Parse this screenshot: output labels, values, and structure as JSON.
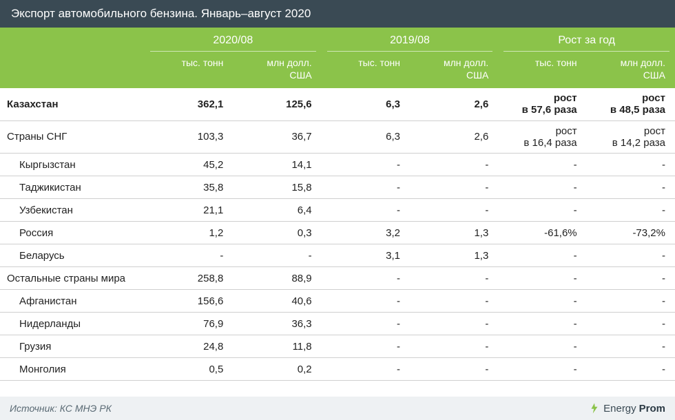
{
  "title": "Экспорт автомобильного бензина. Январь–август 2020",
  "header": {
    "groups": [
      "2020/08",
      "2019/08",
      "Рост за год"
    ],
    "sub_tons": "тыс. тонн",
    "sub_usd": "млн долл.\nСША"
  },
  "rows": [
    {
      "label": "Казахстан",
      "bold": true,
      "indent": false,
      "tall": true,
      "c": [
        "362,1",
        "125,6",
        "6,3",
        "2,6",
        "рост\nв 57,6 раза",
        "рост\nв 48,5 раза"
      ]
    },
    {
      "label": "Страны СНГ",
      "bold": false,
      "indent": false,
      "tall": true,
      "c": [
        "103,3",
        "36,7",
        "6,3",
        "2,6",
        "рост\nв 16,4 раза",
        "рост\nв 14,2 раза"
      ]
    },
    {
      "label": "Кыргызстан",
      "bold": false,
      "indent": true,
      "tall": false,
      "c": [
        "45,2",
        "14,1",
        "-",
        "-",
        "-",
        "-"
      ]
    },
    {
      "label": "Таджикистан",
      "bold": false,
      "indent": true,
      "tall": false,
      "c": [
        "35,8",
        "15,8",
        "-",
        "-",
        "-",
        "-"
      ]
    },
    {
      "label": "Узбекистан",
      "bold": false,
      "indent": true,
      "tall": false,
      "c": [
        "21,1",
        "6,4",
        "-",
        "-",
        "-",
        "-"
      ]
    },
    {
      "label": "Россия",
      "bold": false,
      "indent": true,
      "tall": false,
      "c": [
        "1,2",
        "0,3",
        "3,2",
        "1,3",
        "-61,6%",
        "-73,2%"
      ]
    },
    {
      "label": "Беларусь",
      "bold": false,
      "indent": true,
      "tall": false,
      "c": [
        "-",
        "-",
        "3,1",
        "1,3",
        "-",
        "-"
      ]
    },
    {
      "label": "Остальные страны мира",
      "bold": false,
      "indent": false,
      "tall": false,
      "c": [
        "258,8",
        "88,9",
        "-",
        "-",
        "-",
        "-"
      ]
    },
    {
      "label": "Афганистан",
      "bold": false,
      "indent": true,
      "tall": false,
      "c": [
        "156,6",
        "40,6",
        "-",
        "-",
        "-",
        "-"
      ]
    },
    {
      "label": "Нидерланды",
      "bold": false,
      "indent": true,
      "tall": false,
      "c": [
        "76,9",
        "36,3",
        "-",
        "-",
        "-",
        "-"
      ]
    },
    {
      "label": "Грузия",
      "bold": false,
      "indent": true,
      "tall": false,
      "c": [
        "24,8",
        "11,8",
        "-",
        "-",
        "-",
        "-"
      ]
    },
    {
      "label": "Монголия",
      "bold": false,
      "indent": true,
      "tall": false,
      "c": [
        "0,5",
        "0,2",
        "-",
        "-",
        "-",
        "-"
      ]
    }
  ],
  "footer": {
    "source": "Источник: КС МНЭ РК",
    "logo_text_1": "Energy",
    "logo_text_2": "Prom"
  },
  "colors": {
    "title_bg": "#3a4a54",
    "header_bg": "#8bc34a",
    "row_border": "#cfcfcf",
    "footer_bg": "#eef1f3"
  }
}
